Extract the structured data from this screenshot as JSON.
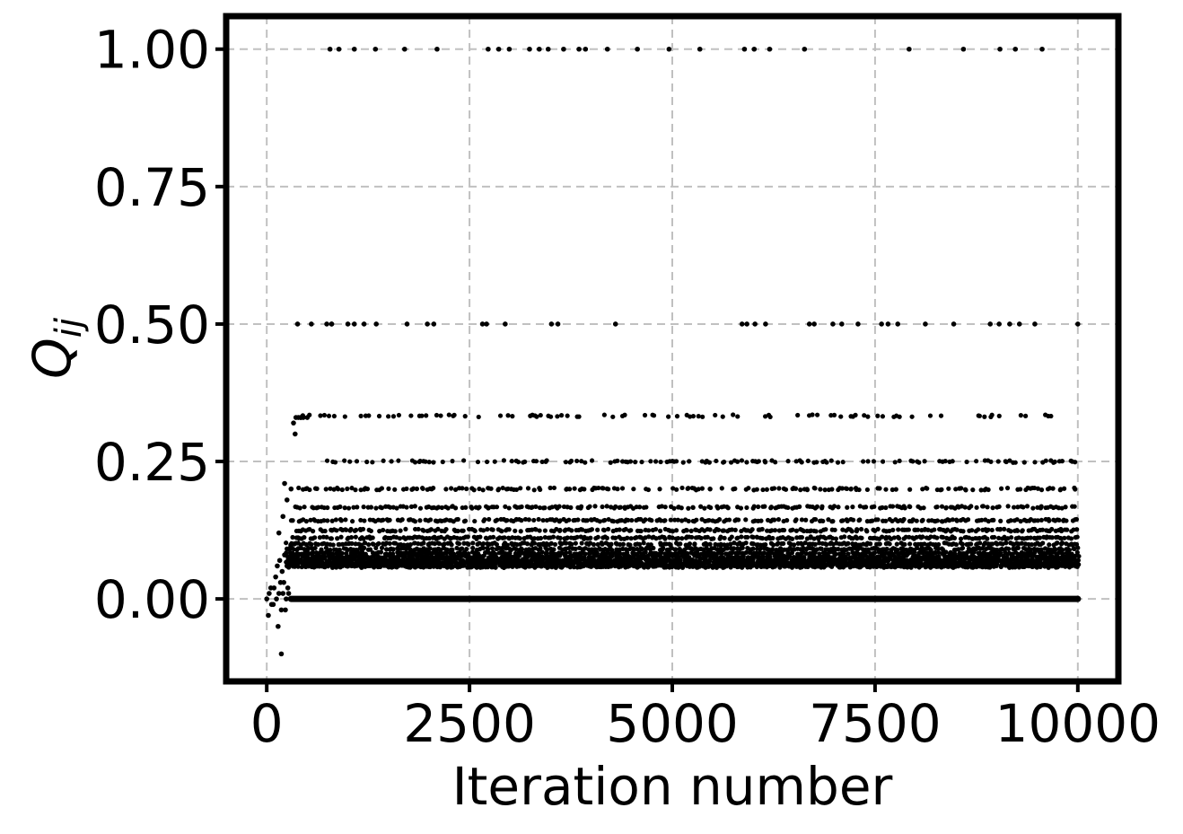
{
  "chart_data": {
    "type": "scatter",
    "title": "",
    "xlabel": "Iteration number",
    "ylabel_main": "Q",
    "ylabel_sub": "ij",
    "xlim": [
      -500,
      10500
    ],
    "ylim": [
      -0.15,
      1.06
    ],
    "xticks": [
      0,
      2500,
      5000,
      7500,
      10000
    ],
    "xtick_labels": [
      "0",
      "2500",
      "5000",
      "7500",
      "10000"
    ],
    "yticks": [
      0.0,
      0.25,
      0.5,
      0.75,
      1.0
    ],
    "ytick_labels": [
      "0.00",
      "0.25",
      "0.50",
      "0.75",
      "1.00"
    ],
    "grid": true,
    "marker_color": "#000000",
    "series": [
      {
        "points": {
          "x": [
            0,
            30,
            60,
            90,
            120,
            150,
            180,
            210,
            240,
            270,
            20,
            50,
            80,
            110,
            140,
            170,
            200,
            230,
            260,
            290,
            130,
            160,
            190,
            220,
            250,
            280,
            310,
            340,
            370,
            400,
            150,
            200,
            250,
            300,
            350,
            420,
            180,
            220,
            330,
            360,
            390,
            420,
            450,
            500,
            380,
            550,
            800,
            1000,
            1200,
            740,
            800,
            1080,
            1350,
            1730,
            1980,
            2060,
            2660,
            2710,
            2940,
            3510,
            3590,
            4300,
            5860,
            5920,
            6020,
            6150,
            6690,
            6750,
            6980,
            7090,
            7290,
            7580,
            7660,
            7780,
            8120,
            8470,
            8920,
            9030,
            9160,
            9280,
            9470,
            10000,
            780,
            890,
            1080,
            1340,
            1700,
            2100,
            2730,
            2860,
            2990,
            3240,
            3360,
            3470,
            3660,
            3850,
            3930,
            4200,
            4570,
            4960,
            5340,
            5890,
            6010,
            6200,
            6630,
            7920,
            8590,
            9040,
            9230,
            9560
          ],
          "y": [
            0.0,
            0.01,
            -0.01,
            0.02,
            0.0,
            0.01,
            -0.02,
            0.03,
            0.0,
            0.01,
            -0.03,
            0.02,
            -0.01,
            0.04,
            -0.05,
            0.03,
            0.01,
            -0.02,
            0.02,
            0.0,
            0.06,
            0.07,
            0.05,
            0.08,
            0.06,
            0.09,
            0.07,
            0.1,
            0.08,
            0.11,
            0.12,
            0.15,
            0.18,
            0.2,
            0.3,
            0.33,
            -0.1,
            0.21,
            0.32,
            0.33,
            0.33,
            0.33,
            0.33,
            0.33,
            0.5,
            0.5,
            0.5,
            0.5,
            0.5,
            0.5,
            0.5,
            0.5,
            0.5,
            0.5,
            0.5,
            0.5,
            0.5,
            0.5,
            0.5,
            0.5,
            0.5,
            0.5,
            0.5,
            0.5,
            0.5,
            0.5,
            0.5,
            0.5,
            0.5,
            0.5,
            0.5,
            0.5,
            0.5,
            0.5,
            0.5,
            0.5,
            0.5,
            0.5,
            0.5,
            0.5,
            0.5,
            0.5,
            1.0,
            1.0,
            1.0,
            1.0,
            1.0,
            1.0,
            1.0,
            1.0,
            1.0,
            1.0,
            1.0,
            1.0,
            1.0,
            1.0,
            1.0,
            1.0,
            1.0,
            1.0,
            1.0,
            1.0,
            1.0,
            1.0,
            1.0,
            1.0,
            1.0,
            1.0,
            1.0,
            1.0
          ]
        },
        "baseline": {
          "y": 0.0,
          "x_range": [
            300,
            10000
          ]
        },
        "dense_bands": [
          {
            "y": 0.333,
            "x_range": [
              400,
              9700
            ],
            "density": 0.33
          },
          {
            "y": 0.25,
            "x_range": [
              700,
              10000
            ],
            "density": 0.45
          },
          {
            "y": 0.2,
            "x_range": [
              350,
              10000
            ],
            "density": 0.55
          },
          {
            "y": 0.1667,
            "x_range": [
              350,
              10000
            ],
            "density": 0.7
          },
          {
            "y": 0.1429,
            "x_range": [
              300,
              10000
            ],
            "density": 0.75
          },
          {
            "y": 0.125,
            "x_range": [
              300,
              10000
            ],
            "density": 0.8
          },
          {
            "y": 0.1111,
            "x_range": [
              300,
              10000
            ],
            "density": 0.85
          },
          {
            "y": 0.1,
            "x_range": [
              250,
              10000
            ],
            "density": 0.9
          },
          {
            "y": 0.0909,
            "x_range": [
              250,
              10000
            ],
            "density": 0.92
          },
          {
            "y": 0.0833,
            "x_range": [
              250,
              10000
            ],
            "density": 0.95
          },
          {
            "y": 0.0769,
            "x_range": [
              250,
              10000
            ],
            "density": 0.97
          },
          {
            "y": 0.0714,
            "x_range": [
              250,
              10000
            ],
            "density": 0.98
          },
          {
            "y": 0.0667,
            "x_range": [
              250,
              10000
            ],
            "density": 0.99
          },
          {
            "y": 0.0625,
            "x_range": [
              250,
              10000
            ],
            "density": 0.99
          },
          {
            "y": 0.0588,
            "x_range": [
              250,
              10000
            ],
            "density": 0.99
          }
        ]
      }
    ]
  }
}
